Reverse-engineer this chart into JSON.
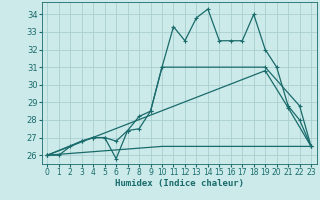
{
  "xlabel": "Humidex (Indice chaleur)",
  "background_color": "#cceaea",
  "grid_color": "#aacece",
  "line_color": "#1a6b6b",
  "xlim": [
    -0.5,
    23.5
  ],
  "ylim": [
    25.5,
    34.7
  ],
  "yticks": [
    26,
    27,
    28,
    29,
    30,
    31,
    32,
    33,
    34
  ],
  "xticks": [
    0,
    1,
    2,
    3,
    4,
    5,
    6,
    7,
    8,
    9,
    10,
    11,
    12,
    13,
    14,
    15,
    16,
    17,
    18,
    19,
    20,
    21,
    22,
    23
  ],
  "line1_x": [
    0,
    1,
    2,
    3,
    4,
    5,
    6,
    7,
    8,
    9,
    10,
    11,
    12,
    13,
    14,
    15,
    16,
    17,
    18,
    19,
    20,
    21,
    22,
    23
  ],
  "line1_y": [
    26,
    26,
    26.5,
    26.8,
    27,
    27,
    25.8,
    27.4,
    27.5,
    28.5,
    31,
    33.3,
    32.5,
    33.8,
    34.3,
    32.5,
    32.5,
    32.5,
    34,
    32.0,
    31,
    28.8,
    28,
    26.5
  ],
  "line2_x": [
    0,
    3,
    4,
    5,
    6,
    7,
    8,
    9,
    10,
    19,
    22,
    23
  ],
  "line2_y": [
    26,
    26.8,
    27,
    27,
    26.8,
    27.4,
    28.2,
    28.5,
    31,
    31,
    28.8,
    26.5
  ],
  "line3_x": [
    0,
    10,
    23
  ],
  "line3_y": [
    26,
    26.5,
    26.5
  ],
  "line4_x": [
    0,
    19,
    21,
    23
  ],
  "line4_y": [
    26,
    30.8,
    28.7,
    26.5
  ]
}
